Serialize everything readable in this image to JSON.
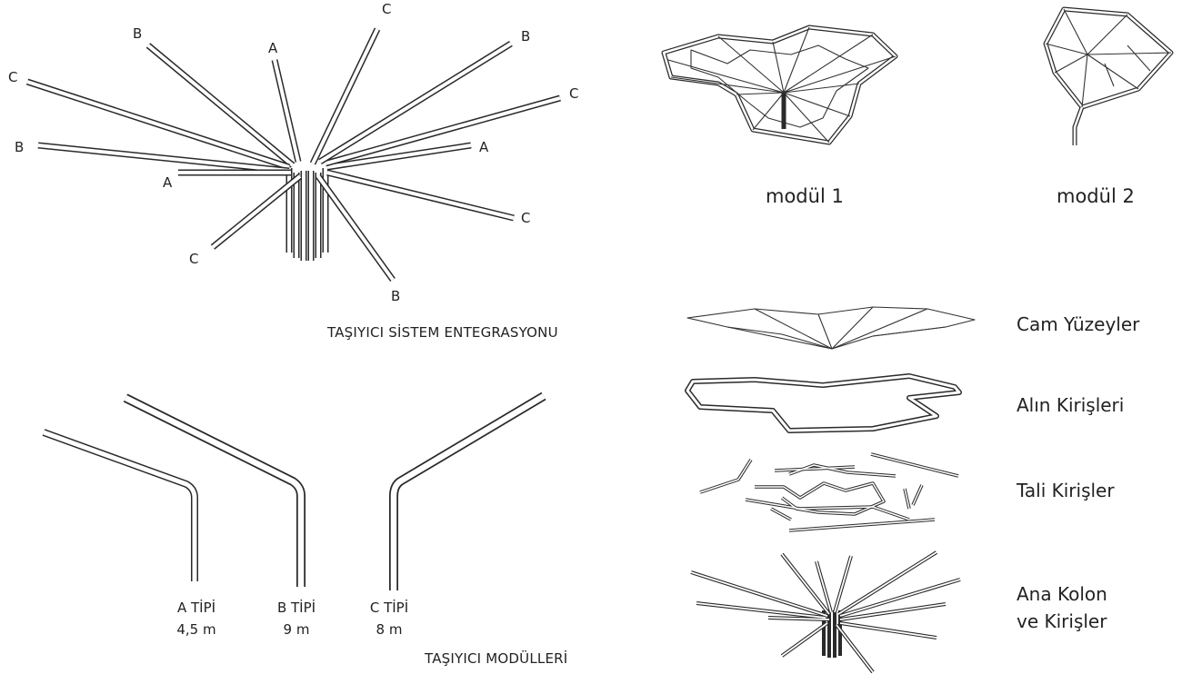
{
  "integration": {
    "caption": "TAŞIYICI SİSTEM ENTEGRASYONU",
    "arm_labels": [
      "C",
      "B",
      "A",
      "B",
      "C",
      "C",
      "B",
      "A",
      "A",
      "C",
      "C",
      "B"
    ]
  },
  "modules_panel": {
    "caption": "TAŞIYICI MODÜLLERİ",
    "types": [
      {
        "name": "A TİPİ",
        "length": "4,5 m"
      },
      {
        "name": "B TİPİ",
        "length": "9 m"
      },
      {
        "name": "C TİPİ",
        "length": "8 m"
      }
    ]
  },
  "module_views": {
    "module1_label": "modül 1",
    "module2_label": "modül 2"
  },
  "layers": [
    {
      "label": "Cam Yüzeyler"
    },
    {
      "label": "Alın Kirişleri"
    },
    {
      "label": "Tali Kirişler"
    },
    {
      "label": "Ana Kolon\nve Kirişler"
    }
  ]
}
